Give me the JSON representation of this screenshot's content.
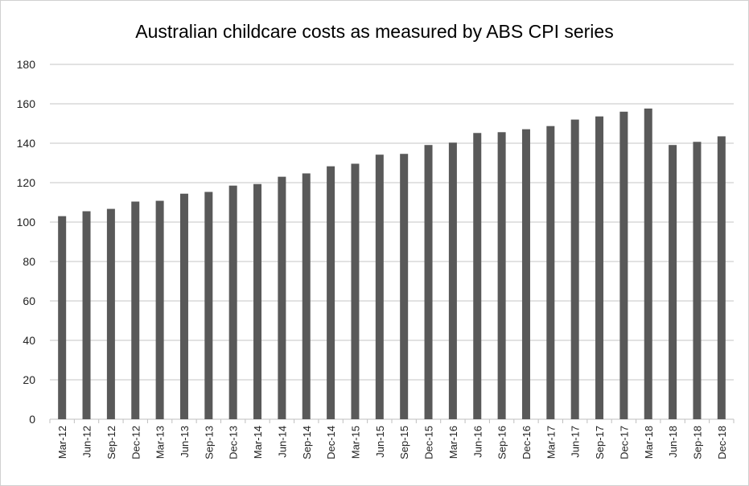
{
  "chart_data": {
    "type": "bar",
    "title": "Australian childcare costs as measured by ABS CPI series",
    "xlabel": "",
    "ylabel": "",
    "ylim": [
      0,
      180
    ],
    "yticks": [
      0,
      20,
      40,
      60,
      80,
      100,
      120,
      140,
      160,
      180
    ],
    "grid": true,
    "bar_color": "#595959",
    "categories": [
      "Mar-12",
      "Jun-12",
      "Sep-12",
      "Dec-12",
      "Mar-13",
      "Jun-13",
      "Sep-13",
      "Dec-13",
      "Mar-14",
      "Jun-14",
      "Sep-14",
      "Dec-14",
      "Mar-15",
      "Jun-15",
      "Sep-15",
      "Dec-15",
      "Mar-16",
      "Jun-16",
      "Sep-16",
      "Dec-16",
      "Mar-17",
      "Jun-17",
      "Sep-17",
      "Dec-17",
      "Mar-18",
      "Jun-18",
      "Sep-18",
      "Dec-18"
    ],
    "values": [
      103.0,
      105.5,
      106.7,
      110.4,
      110.8,
      114.4,
      115.3,
      118.5,
      119.3,
      123.0,
      124.7,
      128.3,
      129.6,
      134.2,
      134.6,
      139.1,
      140.3,
      145.2,
      145.6,
      147.1,
      148.7,
      152.0,
      153.6,
      156.0,
      157.6,
      139.1,
      140.7,
      143.5
    ]
  }
}
